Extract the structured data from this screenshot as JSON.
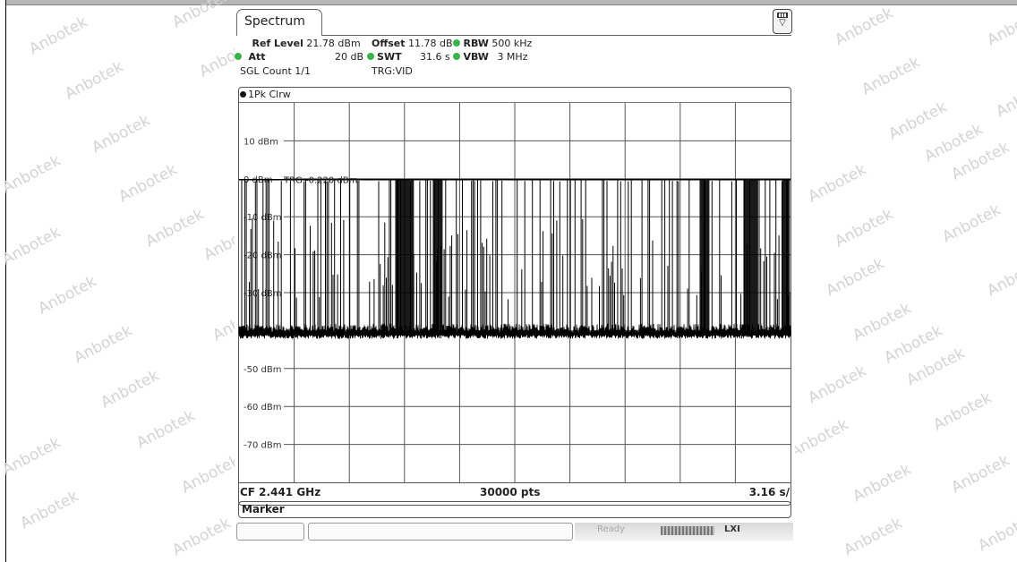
{
  "tab": {
    "title": "Spectrum"
  },
  "params": {
    "ref_level_label": "Ref Level",
    "ref_level_value": "21.78 dBm",
    "offset_label": "Offset",
    "offset_value": "11.78 dB",
    "rbw_label": "RBW",
    "rbw_value": "500 kHz",
    "att_label": "Att",
    "att_value": "20 dB",
    "swt_label": "SWT",
    "swt_value": "31.6 s",
    "vbw_label": "VBW",
    "vbw_value": "3 MHz",
    "sgl_count": "SGL Count 1/1",
    "trg": "TRG:VID"
  },
  "trace": {
    "label": "1Pk Clrw"
  },
  "trigger_line": {
    "label": "TRG",
    "value": "-0.220 dBm",
    "level_dbm": -0.22
  },
  "chart_data": {
    "type": "line",
    "title": "",
    "xlabel": "",
    "ylabel": "",
    "ylim": [
      -80,
      20
    ],
    "grid": true,
    "y_tick_labels": [
      "10 dBm",
      "0 dBm",
      "-10 dBm",
      "-20 dBm",
      "-30 dBm",
      "-40 dBm",
      "-50 dBm",
      "-60 dBm",
      "-70 dBm"
    ],
    "y_ticks": [
      10,
      0,
      -10,
      -20,
      -30,
      -40,
      -50,
      -60,
      -70
    ],
    "x_divisions": 10,
    "noise_floor_dbm": -41,
    "burst_peak_dbm": 0,
    "series": [
      {
        "name": "1Pk Clrw",
        "values": []
      }
    ]
  },
  "footer": {
    "cf": "CF 2.441 GHz",
    "points": "30000 pts",
    "span": "3.16 s/"
  },
  "marker": {
    "label": "Marker"
  },
  "status": {
    "text": "Ready",
    "icon_text": "LXI"
  },
  "watermark": {
    "text": "Anbotek"
  }
}
